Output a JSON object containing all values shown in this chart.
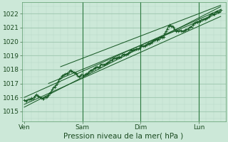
{
  "xlabel": "Pression niveau de la mer( hPa )",
  "bg_color": "#cce8d8",
  "grid_color_minor": "#b8d8c8",
  "grid_color_major": "#99c4aa",
  "line_color": "#1a5c28",
  "vline_color": "#2d7a40",
  "x_ticks": [
    0,
    48,
    96,
    144
  ],
  "x_tick_labels": [
    "Ven",
    "Sam",
    "Dim",
    "Lun"
  ],
  "ylim": [
    1014.3,
    1022.8
  ],
  "xlim": [
    -2,
    166
  ],
  "yticks": [
    1015,
    1016,
    1017,
    1018,
    1019,
    1020,
    1021,
    1022
  ],
  "n_hours": 162,
  "smooth_lines": [
    {
      "x0": 0,
      "y0": 1015.3,
      "x1": 162,
      "y1": 1022.5
    },
    {
      "x0": 0,
      "y0": 1016.0,
      "x1": 162,
      "y1": 1022.3
    },
    {
      "x0": 0,
      "y0": 1015.5,
      "x1": 162,
      "y1": 1021.8
    },
    {
      "x0": 20,
      "y0": 1017.0,
      "x1": 162,
      "y1": 1022.1
    },
    {
      "x0": 30,
      "y0": 1018.2,
      "x1": 162,
      "y1": 1022.6
    }
  ],
  "vlines": [
    48,
    96,
    144
  ]
}
